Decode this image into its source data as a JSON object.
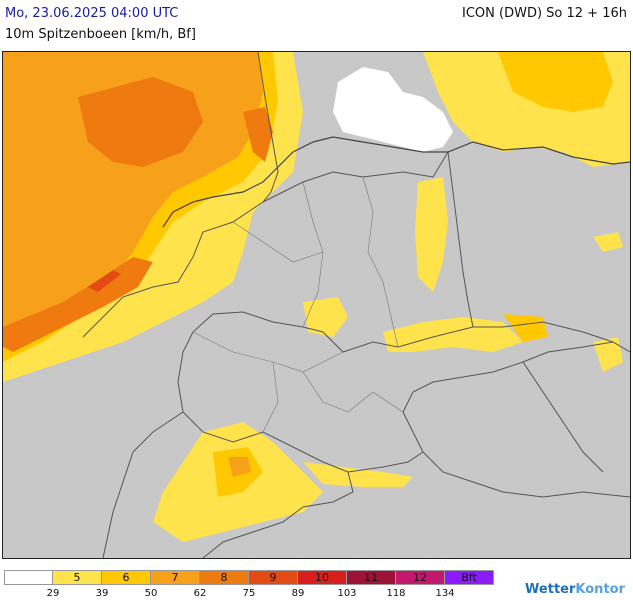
{
  "header": {
    "datetime": "Mo, 23.06.2025 04:00 UTC",
    "model": "ICON (DWD) So 12 + 16h",
    "parameter": "10m Spitzenboeen [km/h, Bf]"
  },
  "legend": {
    "cells": [
      {
        "label": "",
        "color": "#ffffff"
      },
      {
        "label": "5",
        "color": "#ffe34d"
      },
      {
        "label": "6",
        "color": "#ffc800"
      },
      {
        "label": "7",
        "color": "#f7a01a"
      },
      {
        "label": "8",
        "color": "#ef7a10"
      },
      {
        "label": "9",
        "color": "#e34a14"
      },
      {
        "label": "10",
        "color": "#d91e1e"
      },
      {
        "label": "11",
        "color": "#9e1238"
      },
      {
        "label": "12",
        "color": "#c4186e"
      },
      {
        "label": "Bft",
        "color": "#8c1aff"
      }
    ],
    "ticks": [
      "29",
      "39",
      "50",
      "62",
      "75",
      "89",
      "103",
      "118",
      "134"
    ]
  },
  "brand": {
    "part1": "Wetter",
    "part2": "Kontor"
  },
  "colors": {
    "land": "#c8c8c8",
    "sea_calm": "#ffffff",
    "border": "#555555"
  }
}
